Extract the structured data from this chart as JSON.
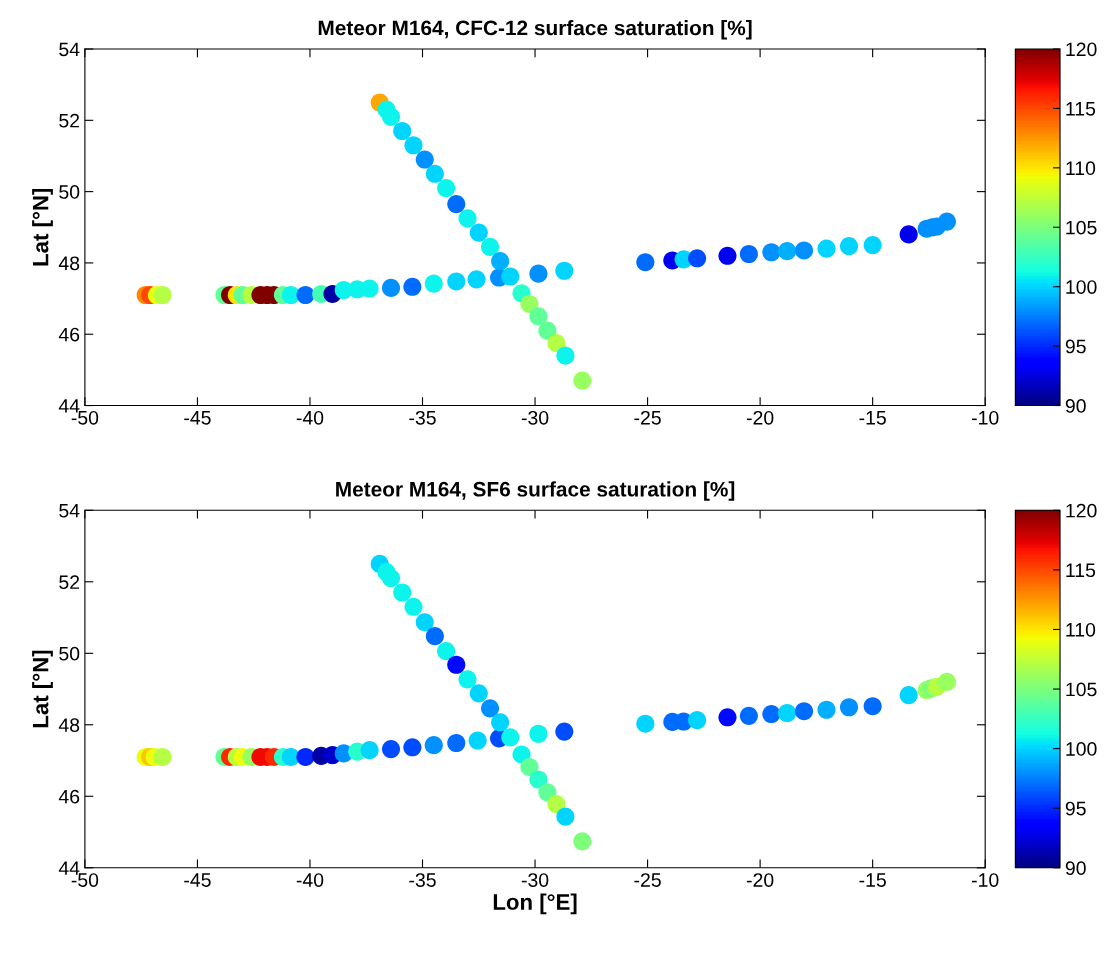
{
  "chart_data": [
    {
      "type": "scatter",
      "title": "Meteor M164, CFC-12 surface saturation [%]",
      "ylabel": "Lat [°N]",
      "marker": "circle",
      "xlim": [
        -50,
        -10
      ],
      "ylim": [
        44,
        54
      ],
      "xticks": [
        -50,
        -45,
        -40,
        -35,
        -30,
        -25,
        -20,
        -15,
        -10
      ],
      "yticks": [
        44,
        46,
        48,
        50,
        52,
        54
      ],
      "clim": [
        90,
        120
      ],
      "cticks": [
        90,
        95,
        100,
        105,
        110,
        115,
        120
      ],
      "x": [
        -47.3,
        -47.1,
        -46.8,
        -46.55,
        -43.8,
        -43.55,
        -43.25,
        -43.0,
        -42.6,
        -42.2,
        -41.9,
        -41.6,
        -41.2,
        -40.85,
        -40.2,
        -39.5,
        -39.0,
        -38.5,
        -37.9,
        -37.35,
        -36.4,
        -35.45,
        -34.5,
        -33.5,
        -32.6,
        -31.6,
        -31.1,
        -29.85,
        -28.7,
        -36.9,
        -36.6,
        -36.4,
        -35.9,
        -35.4,
        -34.9,
        -34.45,
        -33.95,
        -33.5,
        -33.0,
        -32.5,
        -32.0,
        -31.55,
        -30.6,
        -30.25,
        -29.85,
        -29.45,
        -29.05,
        -28.65,
        -27.9,
        -25.1,
        -23.9,
        -23.4,
        -22.8,
        -21.45,
        -20.5,
        -19.5,
        -18.8,
        -18.05,
        -17.05,
        -16.05,
        -15.0,
        -13.4,
        -12.6,
        -12.35,
        -12.15,
        -11.7
      ],
      "values": [
        47.1,
        47.1,
        47.1,
        47.1,
        47.1,
        47.1,
        47.1,
        47.1,
        47.1,
        47.1,
        47.1,
        47.1,
        47.1,
        47.1,
        47.1,
        47.13,
        47.13,
        47.24,
        47.26,
        47.28,
        47.3,
        47.33,
        47.42,
        47.48,
        47.54,
        47.59,
        47.62,
        47.7,
        47.78,
        52.5,
        52.3,
        52.1,
        51.7,
        51.3,
        50.9,
        50.5,
        50.1,
        49.65,
        49.25,
        48.85,
        48.45,
        48.05,
        47.15,
        46.85,
        46.5,
        46.1,
        45.75,
        45.4,
        44.7,
        48.02,
        48.07,
        48.1,
        48.13,
        48.2,
        48.25,
        48.3,
        48.33,
        48.35,
        48.4,
        48.47,
        48.5,
        48.8,
        48.96,
        49.0,
        49.02,
        49.16
      ],
      "cvalues": [
        113,
        115,
        109,
        107,
        104,
        120,
        110,
        104,
        107,
        120,
        120,
        120,
        104,
        101,
        97,
        103,
        91,
        101,
        101,
        101,
        98,
        97,
        101,
        100,
        100,
        98,
        100,
        98,
        100,
        112,
        101,
        101,
        100,
        100,
        98,
        100,
        101,
        97,
        101,
        100,
        101,
        99,
        102,
        106,
        104,
        104,
        107,
        101,
        106,
        97,
        93,
        100,
        96,
        93,
        97,
        98,
        99,
        98,
        100,
        100,
        100,
        93,
        98,
        98,
        98,
        98
      ]
    },
    {
      "type": "scatter",
      "title": "Meteor M164, SF6 surface saturation [%]",
      "xlabel": "Lon [°E]",
      "ylabel": "Lat [°N]",
      "marker": "circle",
      "xlim": [
        -50,
        -10
      ],
      "ylim": [
        44,
        54
      ],
      "xticks": [
        -50,
        -45,
        -40,
        -35,
        -30,
        -25,
        -20,
        -15,
        -10
      ],
      "yticks": [
        44,
        46,
        48,
        50,
        52,
        54
      ],
      "clim": [
        90,
        120
      ],
      "cticks": [
        90,
        95,
        100,
        105,
        110,
        115,
        120
      ],
      "x": [
        -47.3,
        -47.1,
        -46.9,
        -46.55,
        -43.8,
        -43.55,
        -43.25,
        -43.0,
        -42.6,
        -42.2,
        -41.9,
        -41.6,
        -41.2,
        -40.85,
        -40.2,
        -39.5,
        -39.0,
        -38.5,
        -37.9,
        -37.35,
        -36.4,
        -35.45,
        -34.5,
        -33.5,
        -32.55,
        -31.6,
        -31.1,
        -29.85,
        -28.7,
        -36.9,
        -36.6,
        -36.4,
        -35.9,
        -35.4,
        -34.9,
        -34.45,
        -33.95,
        -33.5,
        -33.0,
        -32.5,
        -32.0,
        -31.55,
        -30.6,
        -30.25,
        -29.85,
        -29.45,
        -29.05,
        -28.65,
        -27.9,
        -25.1,
        -23.9,
        -23.4,
        -22.8,
        -21.45,
        -20.5,
        -19.5,
        -18.8,
        -18.05,
        -17.05,
        -16.05,
        -15.0,
        -13.4,
        -12.6,
        -12.4,
        -12.15,
        -11.7
      ],
      "values": [
        47.1,
        47.1,
        47.1,
        47.1,
        47.1,
        47.1,
        47.1,
        47.1,
        47.1,
        47.1,
        47.1,
        47.1,
        47.1,
        47.1,
        47.1,
        47.13,
        47.15,
        47.2,
        47.25,
        47.29,
        47.32,
        47.37,
        47.43,
        47.49,
        47.56,
        47.62,
        47.65,
        47.75,
        47.81,
        52.5,
        52.27,
        52.1,
        51.7,
        51.3,
        50.87,
        50.48,
        50.06,
        49.68,
        49.27,
        48.88,
        48.46,
        48.07,
        47.17,
        46.82,
        46.47,
        46.11,
        45.78,
        45.43,
        44.74,
        48.03,
        48.08,
        48.09,
        48.13,
        48.21,
        48.25,
        48.3,
        48.33,
        48.38,
        48.42,
        48.49,
        48.52,
        48.83,
        48.97,
        49.02,
        49.06,
        49.2
      ],
      "cvalues": [
        109,
        111,
        109,
        107,
        104,
        116,
        107,
        109,
        106,
        117,
        117,
        116,
        102,
        100,
        95,
        91,
        92,
        98,
        102,
        100,
        96,
        96,
        98,
        97,
        100,
        96,
        101,
        101,
        96,
        100,
        101,
        101,
        101,
        101,
        100,
        97,
        101,
        94,
        101,
        100,
        98,
        100,
        101,
        104,
        102,
        104,
        107,
        100,
        105,
        100,
        97,
        97,
        100,
        94,
        97,
        97,
        100,
        97,
        99,
        98,
        97,
        100,
        106,
        105,
        107,
        106
      ]
    }
  ]
}
